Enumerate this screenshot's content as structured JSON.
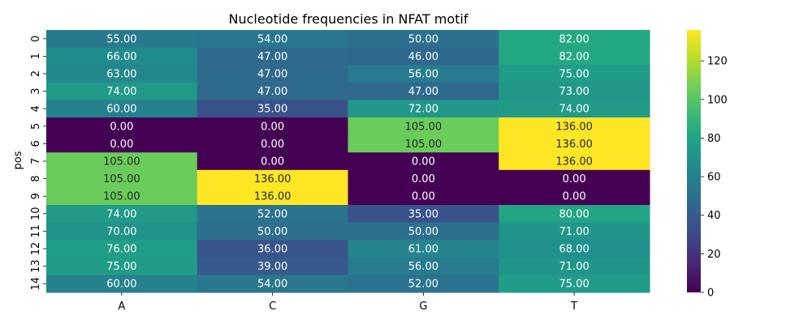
{
  "chart_data": {
    "type": "heatmap",
    "title": "Nucleotide frequencies in NFAT motif",
    "xlabel": "",
    "ylabel": "pos",
    "x_categories": [
      "A",
      "C",
      "G",
      "T"
    ],
    "y_categories": [
      "0",
      "1",
      "2",
      "3",
      "4",
      "5",
      "6",
      "7",
      "8",
      "9",
      "10",
      "11",
      "12",
      "13",
      "14"
    ],
    "values": [
      [
        55,
        54,
        50,
        82
      ],
      [
        66,
        47,
        46,
        82
      ],
      [
        63,
        47,
        56,
        75
      ],
      [
        74,
        47,
        47,
        73
      ],
      [
        60,
        35,
        72,
        74
      ],
      [
        0,
        0,
        105,
        136
      ],
      [
        0,
        0,
        105,
        136
      ],
      [
        105,
        0,
        0,
        136
      ],
      [
        105,
        136,
        0,
        0
      ],
      [
        105,
        136,
        0,
        0
      ],
      [
        74,
        52,
        35,
        80
      ],
      [
        70,
        50,
        50,
        71
      ],
      [
        76,
        36,
        61,
        68
      ],
      [
        75,
        39,
        56,
        71
      ],
      [
        60,
        54,
        52,
        75
      ]
    ],
    "value_format": "2 decimals",
    "colormap": "viridis",
    "vmin": 0,
    "vmax": 136,
    "colorbar_ticks": [
      0,
      20,
      40,
      60,
      80,
      100,
      120
    ],
    "colorbar_tick_labels": [
      "0",
      "20",
      "40",
      "60",
      "80",
      "100",
      "120"
    ]
  }
}
